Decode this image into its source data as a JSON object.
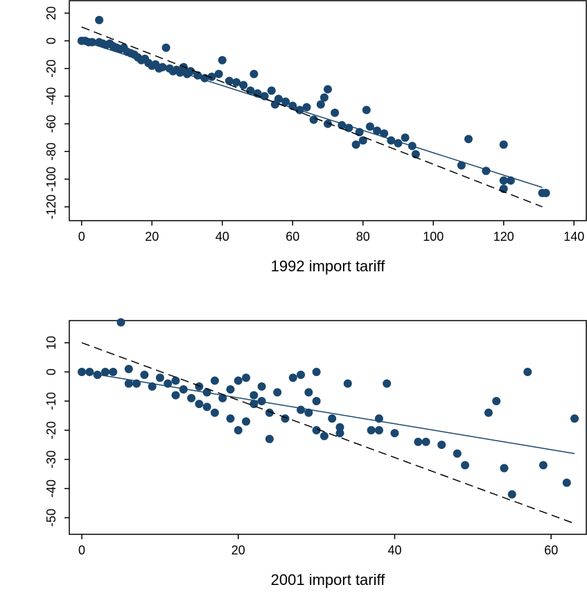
{
  "chart_data": [
    {
      "type": "scatter",
      "x_label": "1992 import tariff",
      "xlim": [
        -3.5,
        143.5
      ],
      "ylim": [
        -130,
        29
      ],
      "xticks": [
        0,
        20,
        40,
        60,
        80,
        100,
        120,
        140
      ],
      "yticks": [
        20,
        0,
        -20,
        -40,
        -60,
        -80,
        -100,
        -120
      ],
      "series": [
        {
          "color": "#1a476f",
          "x": [
            0,
            1,
            2,
            3,
            5,
            5,
            6,
            7,
            8,
            9,
            10,
            11,
            12,
            13,
            14,
            15,
            16,
            17,
            18,
            19,
            20,
            21,
            22,
            23,
            24,
            25,
            26,
            27,
            28,
            29,
            30,
            31,
            33,
            35,
            37,
            39,
            40,
            42,
            44,
            46,
            48,
            49,
            50,
            52,
            54,
            55,
            56,
            58,
            60,
            62,
            64,
            66,
            68,
            69,
            70,
            70,
            72,
            74,
            76,
            78,
            79,
            80,
            81,
            82,
            84,
            86,
            88,
            90,
            92,
            94,
            95,
            108,
            110,
            115,
            120,
            120,
            120,
            122,
            131,
            132
          ],
          "values": [
            0,
            0,
            -1,
            -1,
            15,
            -1,
            -2,
            -3,
            -2,
            -4,
            -5,
            -6,
            -5,
            -8,
            -9,
            -10,
            -12,
            -14,
            -13,
            -16,
            -18,
            -17,
            -20,
            -19,
            -5,
            -20,
            -22,
            -21,
            -23,
            -19,
            -24,
            -22,
            -25,
            -27,
            -26,
            -24,
            -14,
            -29,
            -30,
            -32,
            -36,
            -24,
            -38,
            -40,
            -36,
            -46,
            -42,
            -44,
            -47,
            -50,
            -48,
            -57,
            -46,
            -41,
            -35,
            -60,
            -52,
            -61,
            -63,
            -75,
            -66,
            -72,
            -50,
            -62,
            -65,
            -67,
            -72,
            -74,
            -70,
            -76,
            -82,
            -90,
            -71,
            -94,
            -75,
            -101,
            -107,
            -101,
            -110,
            -110
          ]
        }
      ],
      "lines": [
        {
          "style": "solid",
          "color": "#1a476f",
          "x": [
            0,
            131
          ],
          "values": [
            0,
            -106
          ]
        },
        {
          "style": "dashed",
          "color": "#000000",
          "x": [
            0,
            131
          ],
          "values": [
            10,
            -120
          ]
        }
      ]
    },
    {
      "type": "scatter",
      "x_label": "2001 import tariff",
      "xlim": [
        -1.6,
        64.5
      ],
      "ylim": [
        -55.7,
        17.6
      ],
      "xticks": [
        0,
        20,
        40,
        60
      ],
      "yticks": [
        10,
        0,
        -10,
        -20,
        -30,
        -40,
        -50
      ],
      "series": [
        {
          "color": "#1a476f",
          "x": [
            0,
            1,
            2,
            3,
            4,
            5,
            6,
            6,
            7,
            8,
            9,
            10,
            11,
            12,
            12,
            13,
            14,
            15,
            15,
            16,
            16,
            17,
            17,
            18,
            19,
            19,
            20,
            20,
            21,
            21,
            22,
            22,
            23,
            23,
            24,
            24,
            25,
            26,
            27,
            28,
            28,
            29,
            29,
            30,
            30,
            30,
            31,
            32,
            33,
            33,
            34,
            37,
            38,
            38,
            39,
            40,
            43,
            44,
            46,
            48,
            49,
            52,
            53,
            54,
            55,
            57,
            59,
            62,
            63
          ],
          "values": [
            0,
            0,
            -1,
            0,
            0,
            17,
            1,
            -4,
            -4,
            -1,
            -5,
            -2,
            -4,
            -3,
            -8,
            -6,
            -9,
            -5,
            -11,
            -7,
            -12,
            -3,
            -14,
            -9,
            -6,
            -16,
            -3,
            -20,
            -2,
            -17,
            -8,
            -11,
            -5,
            -10,
            -14,
            -23,
            -7,
            -16,
            -2,
            -13,
            -1,
            -7,
            -14,
            0,
            -10,
            -20,
            -22,
            -16,
            -19,
            -21,
            -4,
            -20,
            -20,
            -16,
            -4,
            -21,
            -24,
            -24,
            -25,
            -28,
            -32,
            -14,
            -10,
            -33,
            -42,
            0,
            -32,
            -38,
            -16
          ]
        }
      ],
      "lines": [
        {
          "style": "solid",
          "color": "#1a476f",
          "x": [
            0,
            63
          ],
          "values": [
            0,
            -28
          ]
        },
        {
          "style": "dashed",
          "color": "#000000",
          "x": [
            0,
            63
          ],
          "values": [
            10,
            -52
          ]
        }
      ]
    }
  ]
}
